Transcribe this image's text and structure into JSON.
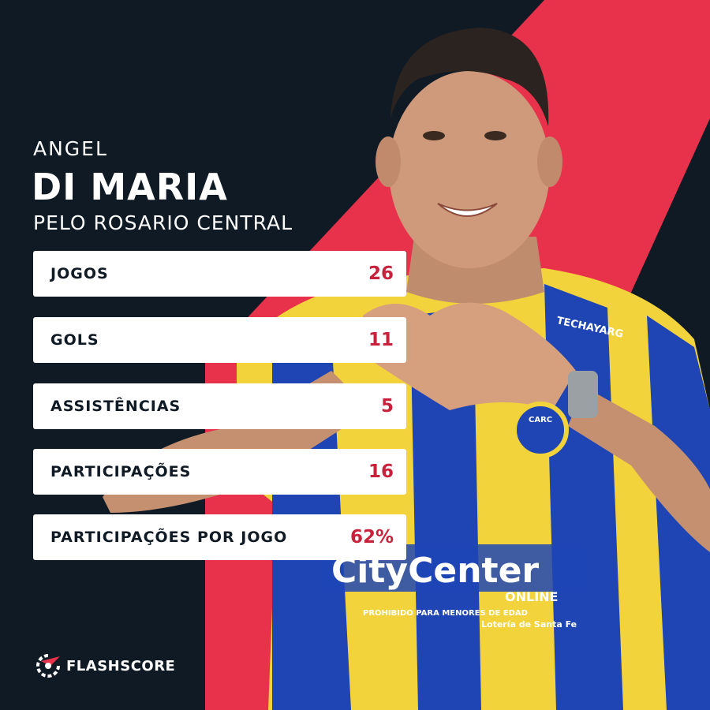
{
  "player": {
    "first_name": "ANGEL",
    "last_name": "DI MARIA",
    "club_line": "PELO ROSARIO CENTRAL"
  },
  "stats": [
    {
      "label": "JOGOS",
      "value": "26"
    },
    {
      "label": "GOLS",
      "value": "11"
    },
    {
      "label": "ASSISTÊNCIAS",
      "value": "5"
    },
    {
      "label": "PARTICIPAÇÕES",
      "value": "16"
    },
    {
      "label": "PARTICIPAÇÕES POR JOGO",
      "value": "62%"
    }
  ],
  "jersey": {
    "sponsor_main": "CityCenter",
    "sponsor_sub": "ONLINE",
    "sponsor_note": "PROHIBIDO PARA MENORES DE EDAD",
    "sponsor_lottery": "Lotería de Santa Fe",
    "kit_brand": "TECHAYARG",
    "crest": "CARC"
  },
  "brand": {
    "name": "FLASHSCORE",
    "logo_icon": "flashscore-logo-icon"
  },
  "colors": {
    "background": "#0f1a24",
    "accent_red": "#e8314a",
    "value_red": "#c8213b",
    "jersey_yellow": "#f3d33b",
    "jersey_blue": "#1f45b5"
  }
}
